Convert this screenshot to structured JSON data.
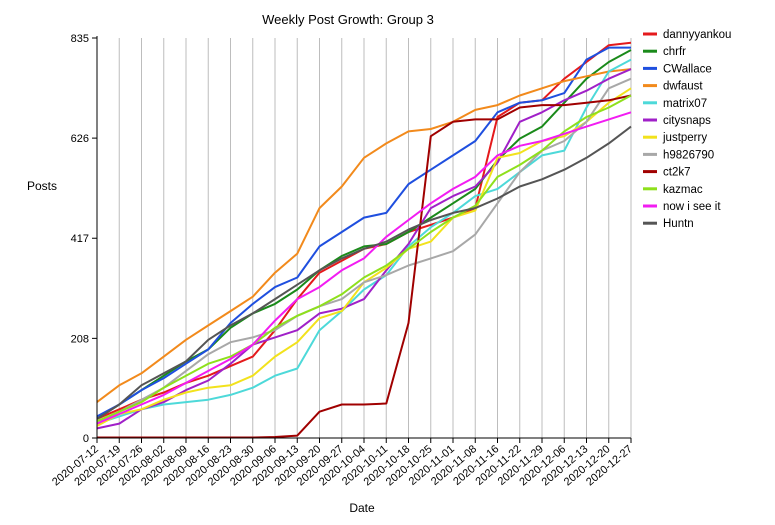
{
  "chart_data": {
    "type": "line",
    "title": "Weekly Post Growth: Group 3",
    "xlabel": "Date",
    "ylabel": "Posts",
    "ylim": [
      0,
      835
    ],
    "yticks": [
      0,
      208,
      417,
      626,
      835
    ],
    "grid": "vertical",
    "legend_position": "right",
    "x": [
      "2020-07-12",
      "2020-07-19",
      "2020-07-26",
      "2020-08-02",
      "2020-08-09",
      "2020-08-16",
      "2020-08-23",
      "2020-08-30",
      "2020-09-06",
      "2020-09-13",
      "2020-09-20",
      "2020-09-27",
      "2020-10-04",
      "2020-10-11",
      "2020-10-18",
      "2020-10-25",
      "2020-11-01",
      "2020-11-08",
      "2020-11-16",
      "2020-11-22",
      "2020-11-29",
      "2020-12-06",
      "2020-12-13",
      "2020-12-20",
      "2020-12-27"
    ],
    "series": [
      {
        "name": "dannyyankou",
        "color": "#e41a1c",
        "values": [
          40,
          60,
          80,
          95,
          115,
          130,
          150,
          170,
          225,
          290,
          345,
          370,
          395,
          405,
          430,
          445,
          460,
          480,
          670,
          700,
          705,
          750,
          785,
          820,
          825
        ]
      },
      {
        "name": "chrfr",
        "color": "#1a8a1a",
        "values": [
          40,
          70,
          100,
          130,
          160,
          185,
          230,
          260,
          280,
          310,
          350,
          380,
          400,
          405,
          430,
          460,
          490,
          520,
          580,
          625,
          650,
          700,
          750,
          785,
          810
        ]
      },
      {
        "name": "CWallace",
        "color": "#1f4fdf",
        "values": [
          45,
          70,
          100,
          125,
          155,
          185,
          240,
          280,
          315,
          335,
          400,
          430,
          460,
          470,
          530,
          560,
          590,
          620,
          680,
          700,
          705,
          720,
          790,
          815,
          815
        ]
      },
      {
        "name": "dwfaust",
        "color": "#f28a1c",
        "values": [
          75,
          110,
          135,
          170,
          205,
          235,
          265,
          295,
          345,
          385,
          480,
          525,
          585,
          615,
          640,
          645,
          660,
          685,
          695,
          715,
          730,
          745,
          755,
          765,
          770
        ]
      },
      {
        "name": "matrix07",
        "color": "#4dd9d9",
        "values": [
          30,
          45,
          60,
          70,
          75,
          80,
          90,
          105,
          130,
          145,
          225,
          265,
          310,
          340,
          400,
          440,
          470,
          505,
          520,
          555,
          590,
          600,
          690,
          765,
          790
        ]
      },
      {
        "name": "citysnaps",
        "color": "#a020c8",
        "values": [
          20,
          30,
          60,
          75,
          100,
          120,
          155,
          195,
          210,
          225,
          260,
          270,
          290,
          350,
          405,
          480,
          505,
          525,
          575,
          660,
          680,
          705,
          725,
          750,
          770
        ]
      },
      {
        "name": "justperry",
        "color": "#f2e21c",
        "values": [
          25,
          50,
          60,
          80,
          95,
          105,
          110,
          130,
          170,
          200,
          250,
          265,
          325,
          355,
          395,
          410,
          460,
          475,
          585,
          595,
          620,
          630,
          660,
          700,
          730
        ]
      },
      {
        "name": "h9826790",
        "color": "#a8a8a8",
        "values": [
          30,
          55,
          80,
          105,
          140,
          175,
          200,
          210,
          225,
          255,
          275,
          290,
          325,
          340,
          360,
          375,
          390,
          425,
          490,
          555,
          600,
          620,
          660,
          730,
          750
        ]
      },
      {
        "name": "ct2k7",
        "color": "#a00000",
        "values": [
          1,
          1,
          1,
          1,
          1,
          1,
          1,
          1,
          2,
          5,
          55,
          70,
          70,
          72,
          240,
          630,
          660,
          665,
          665,
          690,
          695,
          695,
          700,
          705,
          715
        ]
      },
      {
        "name": "kazmac",
        "color": "#8ee01c",
        "values": [
          35,
          55,
          75,
          105,
          130,
          155,
          170,
          195,
          230,
          255,
          275,
          300,
          335,
          360,
          395,
          430,
          460,
          485,
          545,
          570,
          600,
          640,
          670,
          690,
          715
        ]
      },
      {
        "name": "now i see it",
        "color": "#f21cf2",
        "values": [
          30,
          50,
          70,
          90,
          115,
          140,
          165,
          195,
          245,
          290,
          315,
          350,
          375,
          420,
          455,
          490,
          520,
          545,
          590,
          610,
          620,
          635,
          650,
          665,
          680
        ]
      },
      {
        "name": "Huntn",
        "color": "#555555",
        "values": [
          40,
          70,
          110,
          135,
          160,
          205,
          235,
          260,
          290,
          320,
          350,
          375,
          395,
          410,
          435,
          455,
          470,
          480,
          500,
          525,
          540,
          560,
          585,
          615,
          650
        ]
      }
    ]
  }
}
